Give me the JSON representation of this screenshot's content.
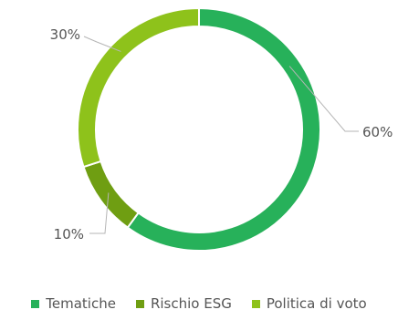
{
  "chart_data": {
    "type": "pie",
    "title": "",
    "categories": [
      "Tematiche",
      "Rischio ESG",
      "Politica di voto"
    ],
    "values": [
      60,
      10,
      30
    ],
    "data_labels": [
      "60%",
      "10%",
      "30%"
    ],
    "colors": [
      "#27b15a",
      "#6f9e12",
      "#8ec21b"
    ],
    "donut": true,
    "legend_position": "bottom"
  }
}
